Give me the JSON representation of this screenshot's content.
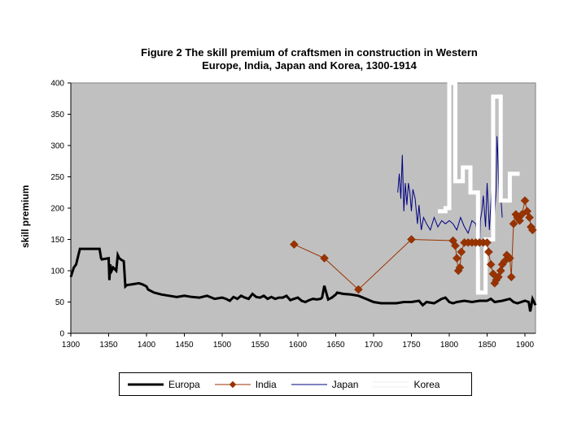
{
  "chart_data": {
    "type": "line",
    "title_line1": "Figure 2 The skill premium of craftsmen in construction in Western",
    "title_line2": "Europe, India, Japan and Korea, 1300-1914",
    "xlabel": "",
    "ylabel": "skill premium",
    "xlim": [
      1300,
      1914
    ],
    "ylim": [
      0,
      400
    ],
    "x_ticks": [
      "1300",
      "1350",
      "1400",
      "1450",
      "1500",
      "1550",
      "1600",
      "1650",
      "1700",
      "1750",
      "1800",
      "1850",
      "1900"
    ],
    "y_ticks": [
      "0",
      "50",
      "100",
      "150",
      "200",
      "250",
      "300",
      "350",
      "400"
    ],
    "grid": false,
    "legend": [
      "Europa",
      "India",
      "Japan",
      "Korea"
    ],
    "series": [
      {
        "name": "Europa",
        "color": "#000000",
        "x": [
          1300,
          1304,
          1307,
          1310,
          1312,
          1314,
          1318,
          1320,
          1338,
          1340,
          1341,
          1350,
          1351,
          1352,
          1354,
          1356,
          1360,
          1362,
          1364,
          1366,
          1370,
          1372,
          1374,
          1380,
          1390,
          1395,
          1400,
          1402,
          1410,
          1420,
          1430,
          1440,
          1450,
          1460,
          1470,
          1480,
          1490,
          1500,
          1505,
          1510,
          1515,
          1520,
          1525,
          1530,
          1535,
          1540,
          1545,
          1550,
          1555,
          1560,
          1565,
          1570,
          1575,
          1580,
          1585,
          1590,
          1595,
          1600,
          1605,
          1610,
          1615,
          1620,
          1625,
          1630,
          1632,
          1635,
          1640,
          1645,
          1650,
          1652,
          1660,
          1670,
          1680,
          1690,
          1700,
          1710,
          1720,
          1730,
          1740,
          1750,
          1760,
          1765,
          1770,
          1780,
          1790,
          1795,
          1800,
          1805,
          1810,
          1820,
          1830,
          1840,
          1850,
          1855,
          1860,
          1870,
          1880,
          1885,
          1890,
          1900,
          1905,
          1907,
          1910,
          1914
        ],
        "y": [
          90,
          105,
          110,
          125,
          135,
          135,
          135,
          135,
          135,
          120,
          118,
          120,
          85,
          110,
          100,
          105,
          100,
          125,
          120,
          118,
          115,
          75,
          77,
          78,
          80,
          78,
          75,
          70,
          65,
          62,
          60,
          58,
          60,
          58,
          57,
          60,
          55,
          57,
          55,
          52,
          58,
          55,
          60,
          57,
          55,
          63,
          58,
          57,
          60,
          55,
          58,
          55,
          57,
          57,
          60,
          53,
          55,
          57,
          52,
          50,
          53,
          55,
          54,
          55,
          57,
          76,
          54,
          57,
          62,
          65,
          63,
          62,
          60,
          55,
          50,
          48,
          48,
          48,
          50,
          50,
          52,
          45,
          50,
          48,
          55,
          57,
          50,
          48,
          50,
          52,
          50,
          52,
          52,
          55,
          50,
          52,
          55,
          50,
          48,
          52,
          50,
          35,
          55,
          45
        ]
      },
      {
        "name": "India",
        "color": "#993300",
        "x": [
          1595,
          1635,
          1680,
          1750,
          1805,
          1808,
          1810,
          1812,
          1814,
          1816,
          1820,
          1825,
          1830,
          1835,
          1840,
          1845,
          1850,
          1852,
          1855,
          1858,
          1860,
          1862,
          1865,
          1868,
          1870,
          1873,
          1876,
          1880,
          1882,
          1885,
          1888,
          1890,
          1893,
          1896,
          1900,
          1903,
          1906,
          1908,
          1910
        ],
        "y": [
          142,
          120,
          70,
          150,
          148,
          140,
          120,
          100,
          105,
          130,
          145,
          145,
          145,
          145,
          145,
          145,
          145,
          130,
          110,
          95,
          80,
          85,
          90,
          100,
          110,
          115,
          125,
          120,
          90,
          175,
          190,
          185,
          180,
          190,
          212,
          195,
          185,
          170,
          165
        ]
      },
      {
        "name": "Japan",
        "color": "#000080",
        "x": [
          1732,
          1734,
          1736,
          1738,
          1740,
          1742,
          1744,
          1746,
          1748,
          1750,
          1752,
          1755,
          1758,
          1760,
          1763,
          1766,
          1770,
          1775,
          1780,
          1785,
          1790,
          1795,
          1800,
          1805,
          1810,
          1815,
          1820,
          1825,
          1830,
          1835,
          1837,
          1839,
          1841,
          1843,
          1845,
          1848,
          1850,
          1853,
          1856,
          1858,
          1860,
          1862,
          1863,
          1864,
          1866,
          1868,
          1870
        ],
        "y": [
          225,
          255,
          215,
          285,
          195,
          240,
          205,
          240,
          225,
          195,
          230,
          215,
          175,
          205,
          165,
          185,
          175,
          165,
          185,
          170,
          180,
          175,
          180,
          175,
          165,
          185,
          170,
          160,
          180,
          175,
          160,
          70,
          180,
          195,
          220,
          170,
          240,
          165,
          230,
          200,
          190,
          230,
          315,
          290,
          210,
          220,
          185
        ]
      },
      {
        "name": "Korea",
        "color": "#ffffff",
        "x": [
          1785,
          1795,
          1795,
          1800,
          1800,
          1808,
          1808,
          1818,
          1818,
          1828,
          1828,
          1838,
          1838,
          1848,
          1848,
          1858,
          1858,
          1868,
          1868,
          1880,
          1880,
          1893
        ],
        "y": [
          195,
          195,
          200,
          200,
          400,
          400,
          243,
          243,
          265,
          265,
          225,
          225,
          65,
          65,
          150,
          150,
          378,
          378,
          212,
          212,
          255,
          255
        ]
      }
    ]
  }
}
